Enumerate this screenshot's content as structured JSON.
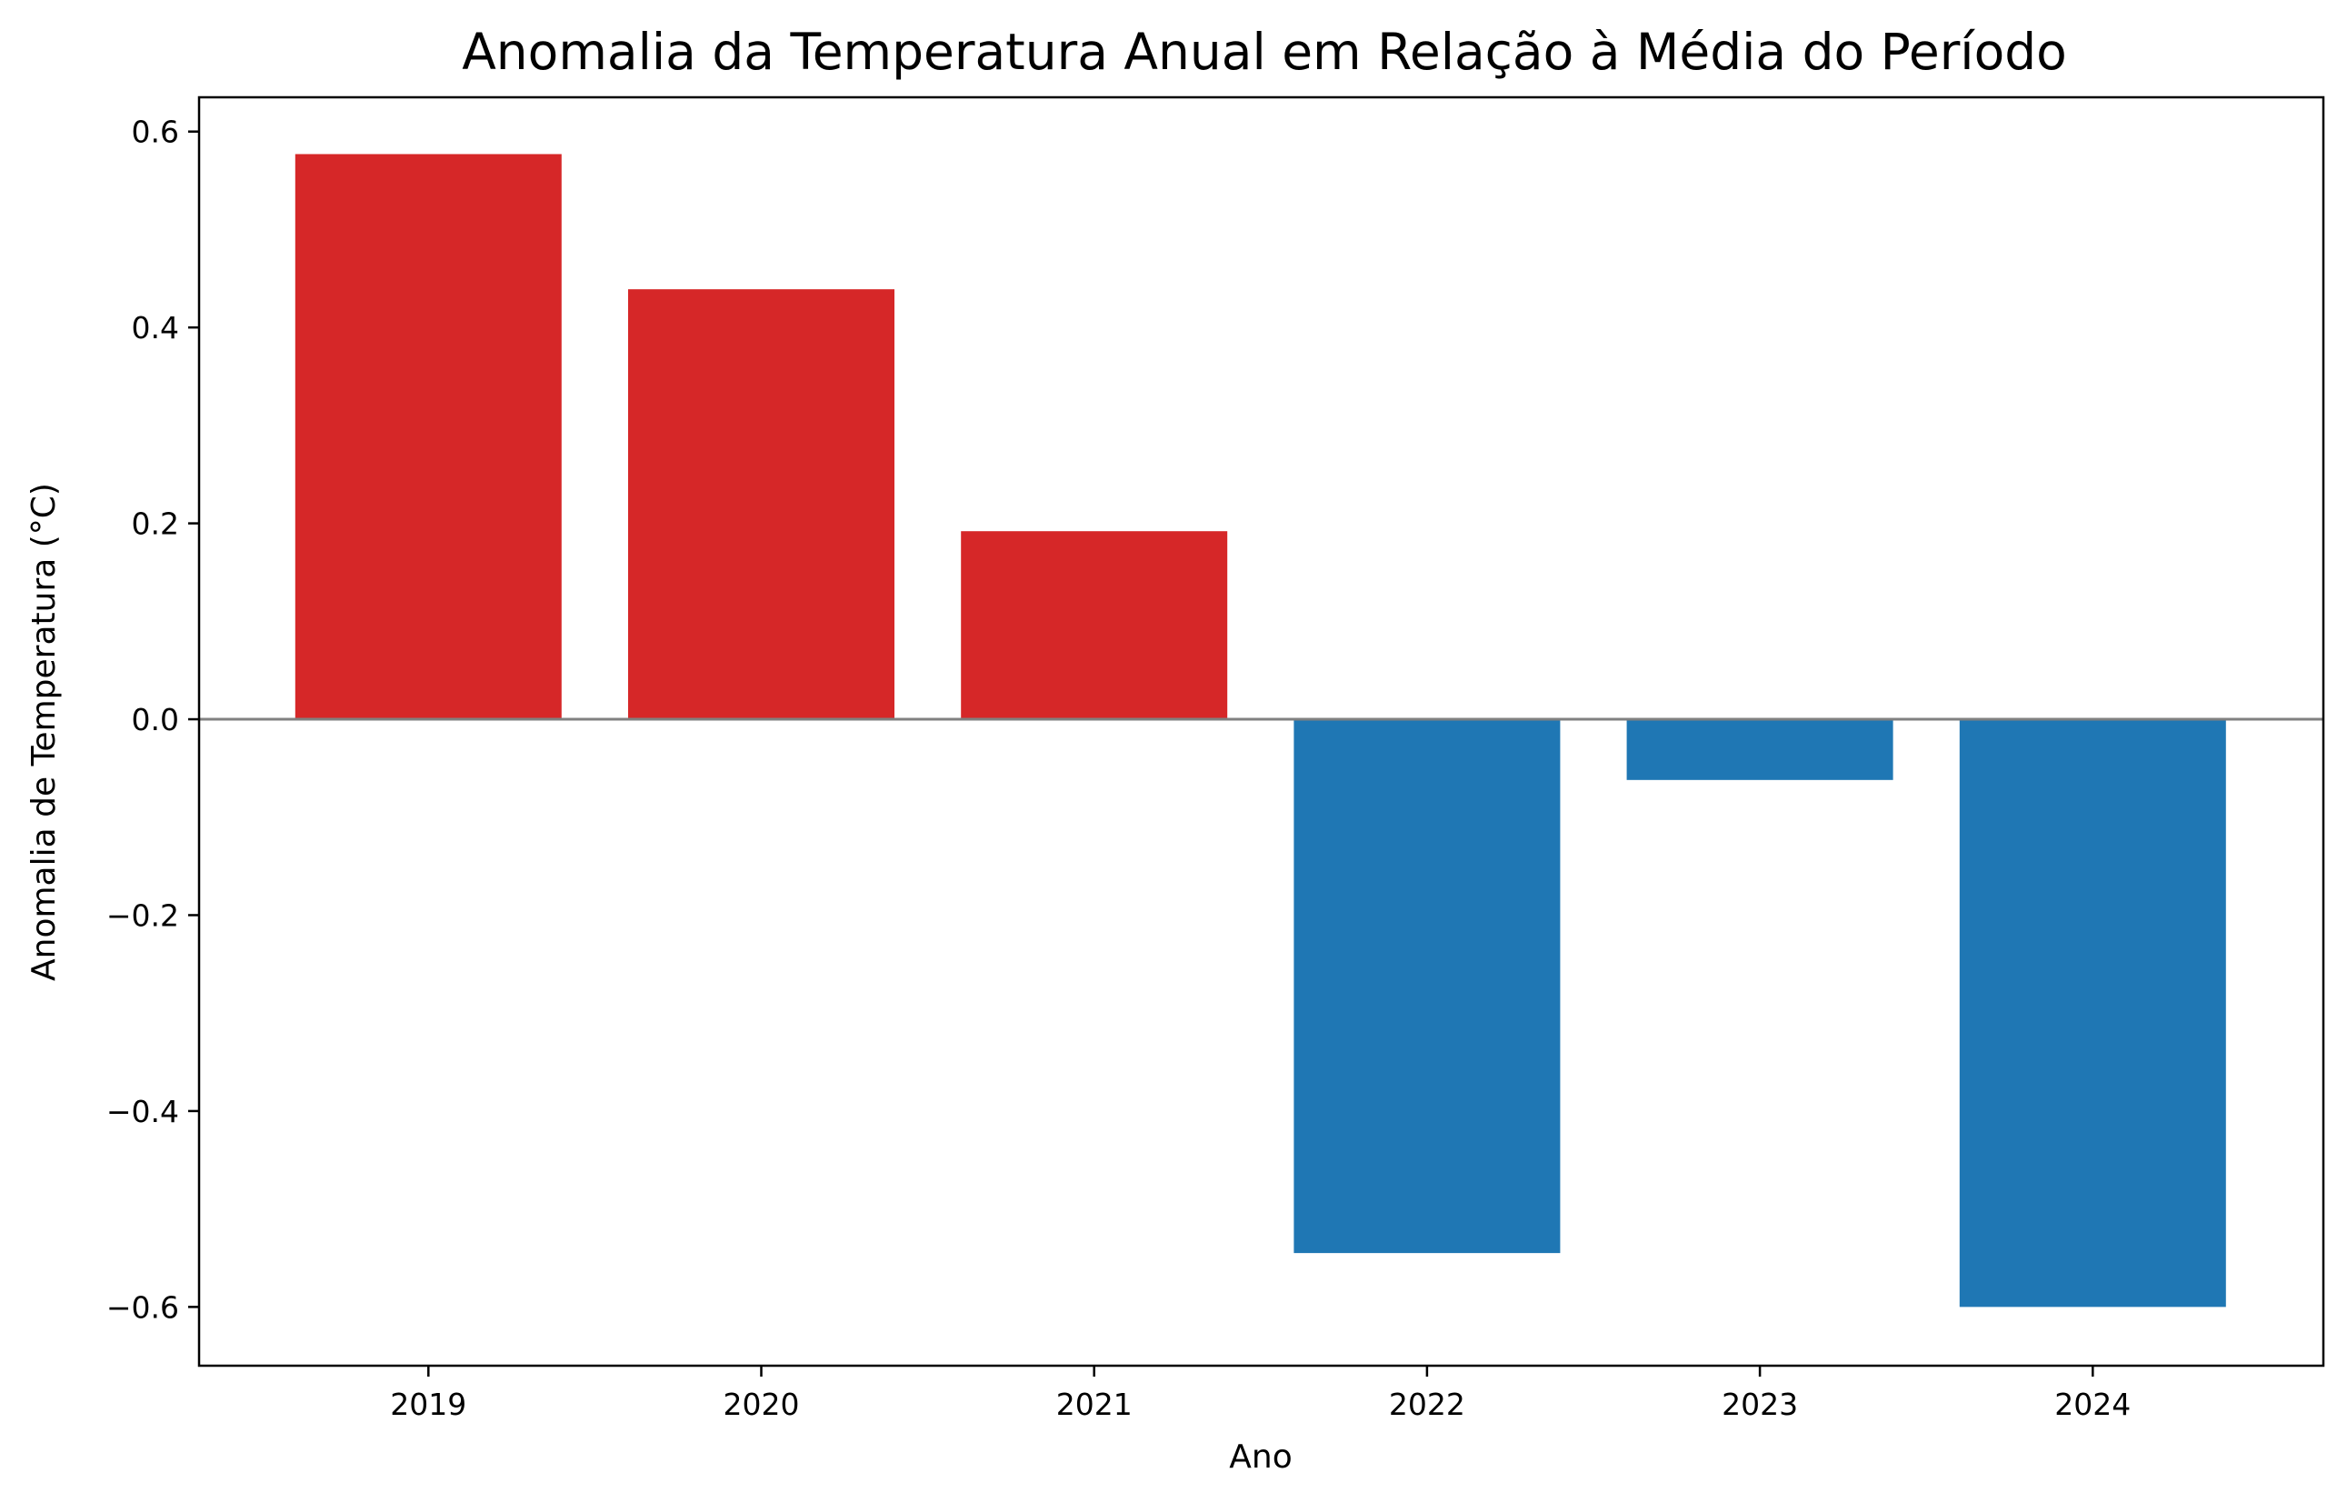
{
  "chart_data": {
    "type": "bar",
    "title": "Anomalia da Temperatura Anual em Relação à Média do Período",
    "xlabel": "Ano",
    "ylabel": "Anomalia de Temperatura (°C)",
    "categories": [
      "2019",
      "2020",
      "2021",
      "2022",
      "2023",
      "2024"
    ],
    "values": [
      0.577,
      0.439,
      0.192,
      -0.545,
      -0.062,
      -0.6
    ],
    "ylim": [
      -0.66,
      0.635
    ],
    "yticks": [
      0.6,
      0.4,
      0.2,
      0.0,
      -0.2,
      -0.4,
      -0.6
    ],
    "ytick_labels": [
      "0.6",
      "0.4",
      "0.2",
      "0.0",
      "−0.2",
      "−0.4",
      "−0.6"
    ],
    "grid": false,
    "legend": "none",
    "colors": {
      "positive": "#d62728",
      "negative": "#1f77b4",
      "zero_line": "#808080",
      "axes": "#000000"
    }
  }
}
